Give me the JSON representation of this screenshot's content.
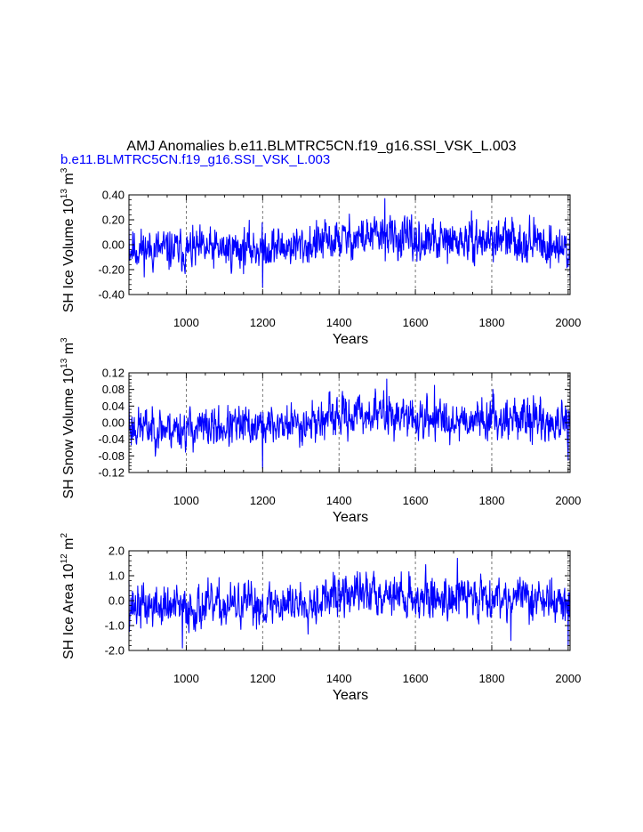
{
  "title": "AMJ Anomalies b.e11.BLMTRC5CN.f19_g16.SSI_VSK_L.003",
  "subtitle": "b.e11.BLMTRC5CN.f19_g16.SSI_VSK_L.003",
  "colors": {
    "series": "#0000ff",
    "subtitle": "#0000ff",
    "axis": "#000000",
    "grid": "#555555"
  },
  "chart_data": [
    {
      "type": "line",
      "ylabel_main": "SH Ice Volume 10",
      "ylabel_exp": "13",
      "ylabel_unit": " m",
      "ylabel_unit_exp": "3",
      "xlabel": "Years",
      "xlim": [
        850,
        2005
      ],
      "ylim": [
        -0.4,
        0.4
      ],
      "yticks": [
        -0.4,
        -0.2,
        0.0,
        0.2,
        0.4
      ],
      "ytick_labels": [
        "-0.40",
        "-0.20",
        "0.00",
        "0.20",
        "0.40"
      ],
      "xticks": [
        1000,
        1200,
        1400,
        1600,
        1800,
        2000
      ],
      "xtick_labels": [
        "1000",
        "1200",
        "1400",
        "1600",
        "1800",
        "2000"
      ],
      "grid_x": true,
      "x": [
        850,
        1000,
        1200,
        1400,
        1520,
        1600,
        1800,
        2005
      ],
      "y": [
        0.14,
        -0.05,
        -0.34,
        0.0,
        0.37,
        0.02,
        0.1,
        -0.27
      ],
      "amplitude": 0.095,
      "low_freq": [
        [
          850,
          -0.03
        ],
        [
          1000,
          -0.05
        ],
        [
          1150,
          -0.03
        ],
        [
          1300,
          -0.01
        ],
        [
          1450,
          0.06
        ],
        [
          1520,
          0.07
        ],
        [
          1600,
          0.02
        ],
        [
          1700,
          0.02
        ],
        [
          1800,
          0.04
        ],
        [
          1900,
          0.03
        ],
        [
          2005,
          -0.04
        ]
      ],
      "seed": 11
    },
    {
      "type": "line",
      "ylabel_main": "SH Snow Volume 10",
      "ylabel_exp": "13",
      "ylabel_unit": " m",
      "ylabel_unit_exp": "3",
      "xlabel": "Years",
      "xlim": [
        850,
        2005
      ],
      "ylim": [
        -0.12,
        0.12
      ],
      "yticks": [
        -0.12,
        -0.08,
        -0.04,
        0.0,
        0.04,
        0.08,
        0.12
      ],
      "ytick_labels": [
        "-0.12",
        "-0.08",
        "-0.04",
        "0.00",
        "0.04",
        "0.08",
        "0.12"
      ],
      "xticks": [
        1000,
        1200,
        1400,
        1600,
        1800,
        2000
      ],
      "xtick_labels": [
        "1000",
        "1200",
        "1400",
        "1600",
        "1800",
        "2000"
      ],
      "grid_x": true,
      "x": [
        850,
        1200,
        1525,
        1650,
        2000
      ],
      "y": [
        0.05,
        -0.11,
        0.105,
        0.09,
        -0.09
      ],
      "amplitude": 0.028,
      "low_freq": [
        [
          850,
          -0.01
        ],
        [
          1000,
          -0.015
        ],
        [
          1150,
          -0.01
        ],
        [
          1300,
          -0.002
        ],
        [
          1450,
          0.02
        ],
        [
          1520,
          0.022
        ],
        [
          1600,
          0.008
        ],
        [
          1700,
          0.008
        ],
        [
          1800,
          0.012
        ],
        [
          1900,
          0.01
        ],
        [
          2005,
          -0.012
        ]
      ],
      "seed": 23
    },
    {
      "type": "line",
      "ylabel_main": "SH Ice Area 10",
      "ylabel_exp": "12",
      "ylabel_unit": " m",
      "ylabel_unit_exp": "2",
      "xlabel": "Years",
      "xlim": [
        850,
        2005
      ],
      "ylim": [
        -2.0,
        2.0
      ],
      "yticks": [
        -2.0,
        -1.0,
        0.0,
        1.0,
        2.0
      ],
      "ytick_labels": [
        "-2.0",
        "-1.0",
        "0.0",
        "1.0",
        "2.0"
      ],
      "xticks": [
        1000,
        1200,
        1400,
        1600,
        1800,
        2000
      ],
      "xtick_labels": [
        "1000",
        "1200",
        "1400",
        "1600",
        "1800",
        "2000"
      ],
      "grid_x": true,
      "x": [
        850,
        990,
        1710,
        1850,
        2000
      ],
      "y": [
        0.8,
        -1.9,
        1.7,
        -1.6,
        -1.8
      ],
      "amplitude": 0.5,
      "low_freq": [
        [
          850,
          -0.2
        ],
        [
          1000,
          -0.3
        ],
        [
          1150,
          -0.2
        ],
        [
          1300,
          -0.05
        ],
        [
          1450,
          0.3
        ],
        [
          1520,
          0.35
        ],
        [
          1600,
          0.1
        ],
        [
          1700,
          0.15
        ],
        [
          1800,
          0.2
        ],
        [
          1900,
          0.15
        ],
        [
          2005,
          -0.2
        ]
      ],
      "seed": 37
    }
  ]
}
